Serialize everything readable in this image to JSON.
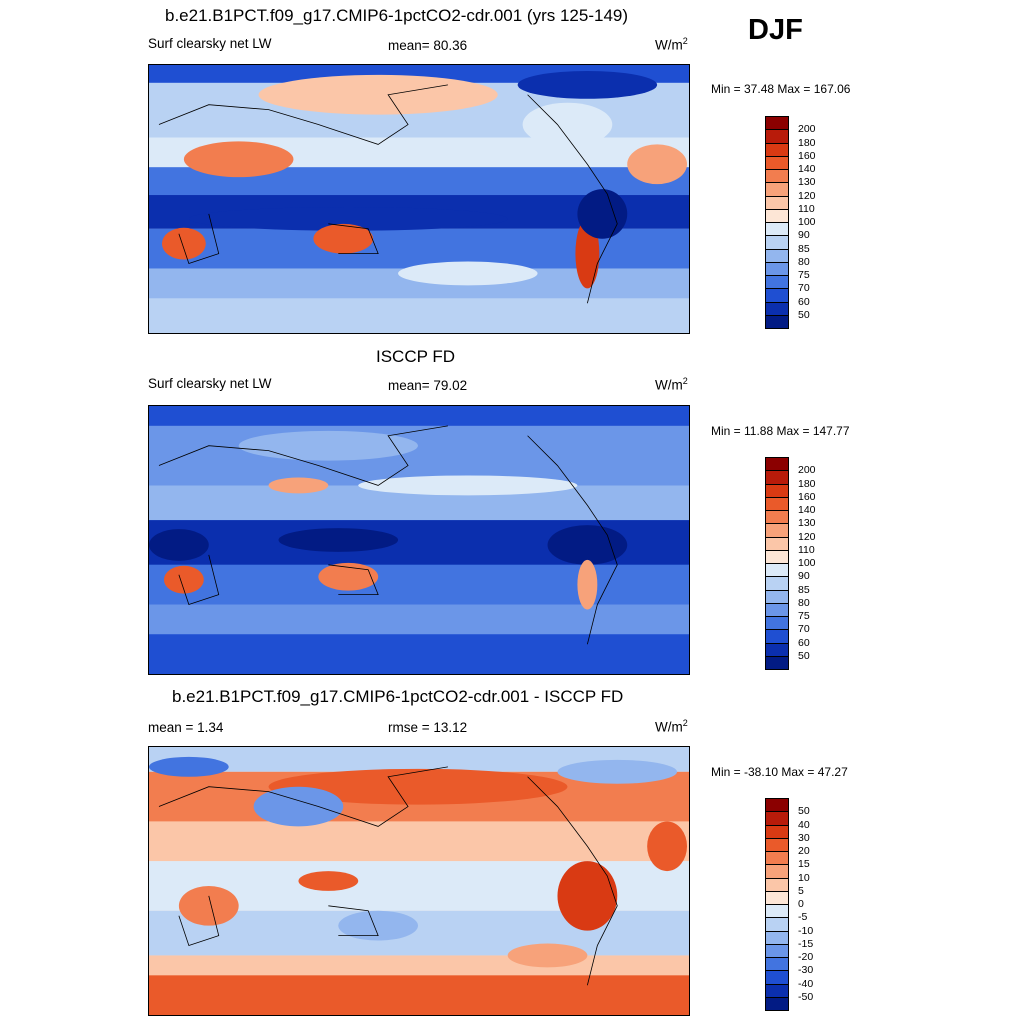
{
  "season": "DJF",
  "panels": [
    {
      "title": "b.e21.B1PCT.f09_g17.CMIP6-1pctCO2-cdr.001 (yrs 125-149)",
      "left_label": "Surf clearsky net LW",
      "center_label": "mean=  80.36",
      "units": "W/m",
      "units_sup": "2",
      "minmax": "Min =  37.48 Max = 167.06",
      "colorbar": {
        "ticks": [
          "200",
          "180",
          "160",
          "140",
          "130",
          "120",
          "110",
          "100",
          "90",
          "85",
          "80",
          "75",
          "70",
          "60",
          "50"
        ],
        "colors": [
          "#8b0000",
          "#b81b0a",
          "#d93a13",
          "#ea5a2a",
          "#f27d4f",
          "#f7a27a",
          "#fbc6a8",
          "#fde6d6",
          "#dceaf8",
          "#b9d2f3",
          "#93b6ee",
          "#6b96e8",
          "#4274e0",
          "#1f4fd2",
          "#0b2fae",
          "#021b84"
        ]
      },
      "map_style": "model"
    },
    {
      "title": "ISCCP FD",
      "left_label": "Surf clearsky net LW",
      "center_label": "mean=  79.02",
      "units": "W/m",
      "units_sup": "2",
      "minmax": "Min =  11.88 Max = 147.77",
      "colorbar": {
        "ticks": [
          "200",
          "180",
          "160",
          "140",
          "130",
          "120",
          "110",
          "100",
          "90",
          "85",
          "80",
          "75",
          "70",
          "60",
          "50"
        ],
        "colors": [
          "#8b0000",
          "#b81b0a",
          "#d93a13",
          "#ea5a2a",
          "#f27d4f",
          "#f7a27a",
          "#fbc6a8",
          "#fde6d6",
          "#dceaf8",
          "#b9d2f3",
          "#93b6ee",
          "#6b96e8",
          "#4274e0",
          "#1f4fd2",
          "#0b2fae",
          "#021b84"
        ]
      },
      "map_style": "obs"
    },
    {
      "title": "b.e21.B1PCT.f09_g17.CMIP6-1pctCO2-cdr.001 - ISCCP FD",
      "left_label": "mean =   1.34",
      "center_label": "rmse =  13.12",
      "units": "W/m",
      "units_sup": "2",
      "minmax": "Min = -38.10 Max =  47.27",
      "colorbar": {
        "ticks": [
          "50",
          "40",
          "30",
          "20",
          "15",
          "10",
          "5",
          "0",
          "-5",
          "-10",
          "-15",
          "-20",
          "-30",
          "-40",
          "-50"
        ],
        "colors": [
          "#8b0000",
          "#b81b0a",
          "#d93a13",
          "#ea5a2a",
          "#f27d4f",
          "#f7a27a",
          "#fbc6a8",
          "#fde6d6",
          "#dceaf8",
          "#b9d2f3",
          "#93b6ee",
          "#6b96e8",
          "#4274e0",
          "#1f4fd2",
          "#0b2fae",
          "#021b84"
        ]
      },
      "map_style": "diff"
    }
  ]
}
